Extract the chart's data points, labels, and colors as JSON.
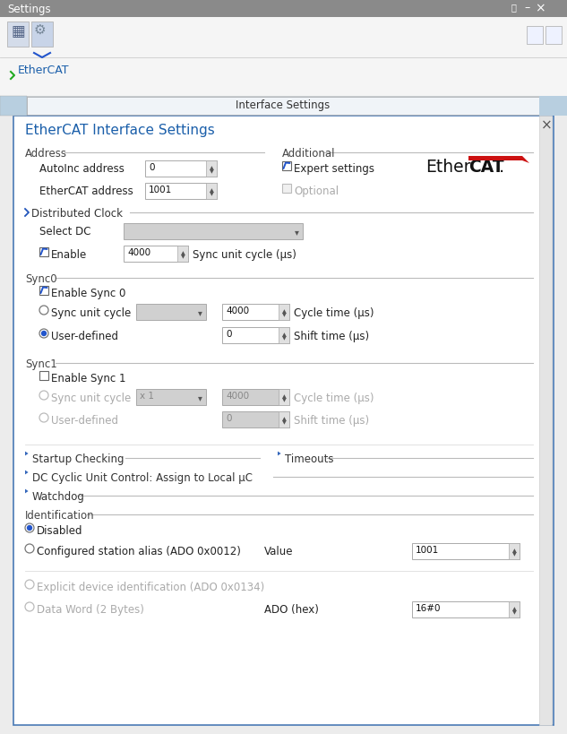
{
  "title_bar": "Settings",
  "title_bar_color": "#8a8a8a",
  "bg_color": "#ececec",
  "panel_bg": "#ffffff",
  "tab_text": "Interface Settings",
  "dialog_title": "EtherCAT Interface Settings",
  "dialog_title_color": "#1b5faa",
  "section_color": "#444444",
  "label_color": "#222222",
  "disabled_color": "#aaaaaa",
  "blue_label_color": "#1b5faa",
  "border_color": "#aaaaaa",
  "input_bg": "#ffffff",
  "disabled_input_bg": "#d0d0d0",
  "spinner_bg": "#e0e0e0",
  "ethercat_red": "#cc1111",
  "ethercat_dark": "#111111",
  "tab_bar_color": "#b8cfe0",
  "tab_bg": "#f0f4f8",
  "toolbar_bg": "#f5f5f5",
  "tree_bg": "#f5f5f5",
  "panel_border": "#4a7ab5"
}
